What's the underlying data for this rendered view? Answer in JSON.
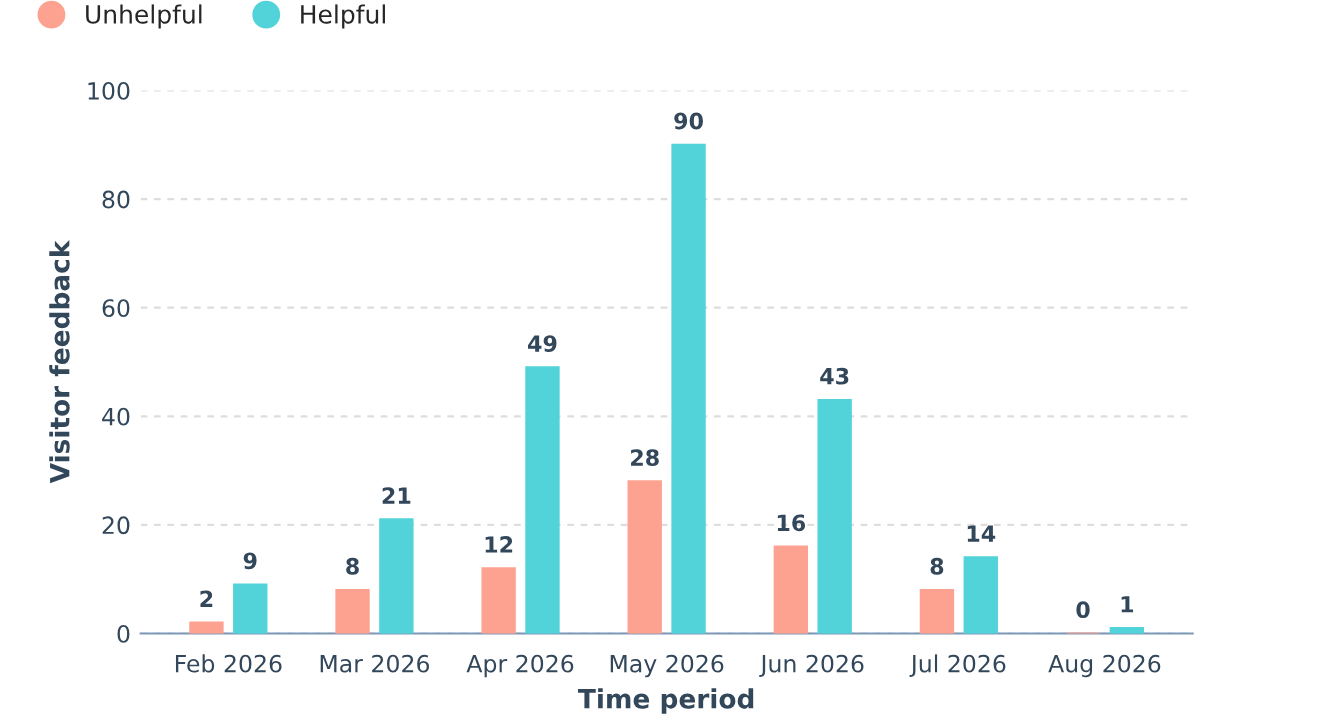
{
  "chart_data": {
    "type": "bar",
    "xlabel": "Time period",
    "ylabel": "Visitor feedback",
    "categories": [
      "Feb 2026",
      "Mar 2026",
      "Apr 2026",
      "May 2026",
      "Jun 2026",
      "Jul 2026",
      "Aug 2026"
    ],
    "series": [
      {
        "name": "Unhelpful",
        "color": "#fda290",
        "values": [
          2,
          8,
          12,
          28,
          16,
          8,
          0
        ]
      },
      {
        "name": "Helpful",
        "color": "#51d3d9",
        "values": [
          9,
          21,
          49,
          90,
          43,
          14,
          1
        ]
      }
    ],
    "ylim": [
      0,
      100
    ],
    "yticks": [
      0,
      20,
      40,
      60,
      80,
      100
    ],
    "grid": "y",
    "legend": "top left",
    "data_labels": true
  }
}
